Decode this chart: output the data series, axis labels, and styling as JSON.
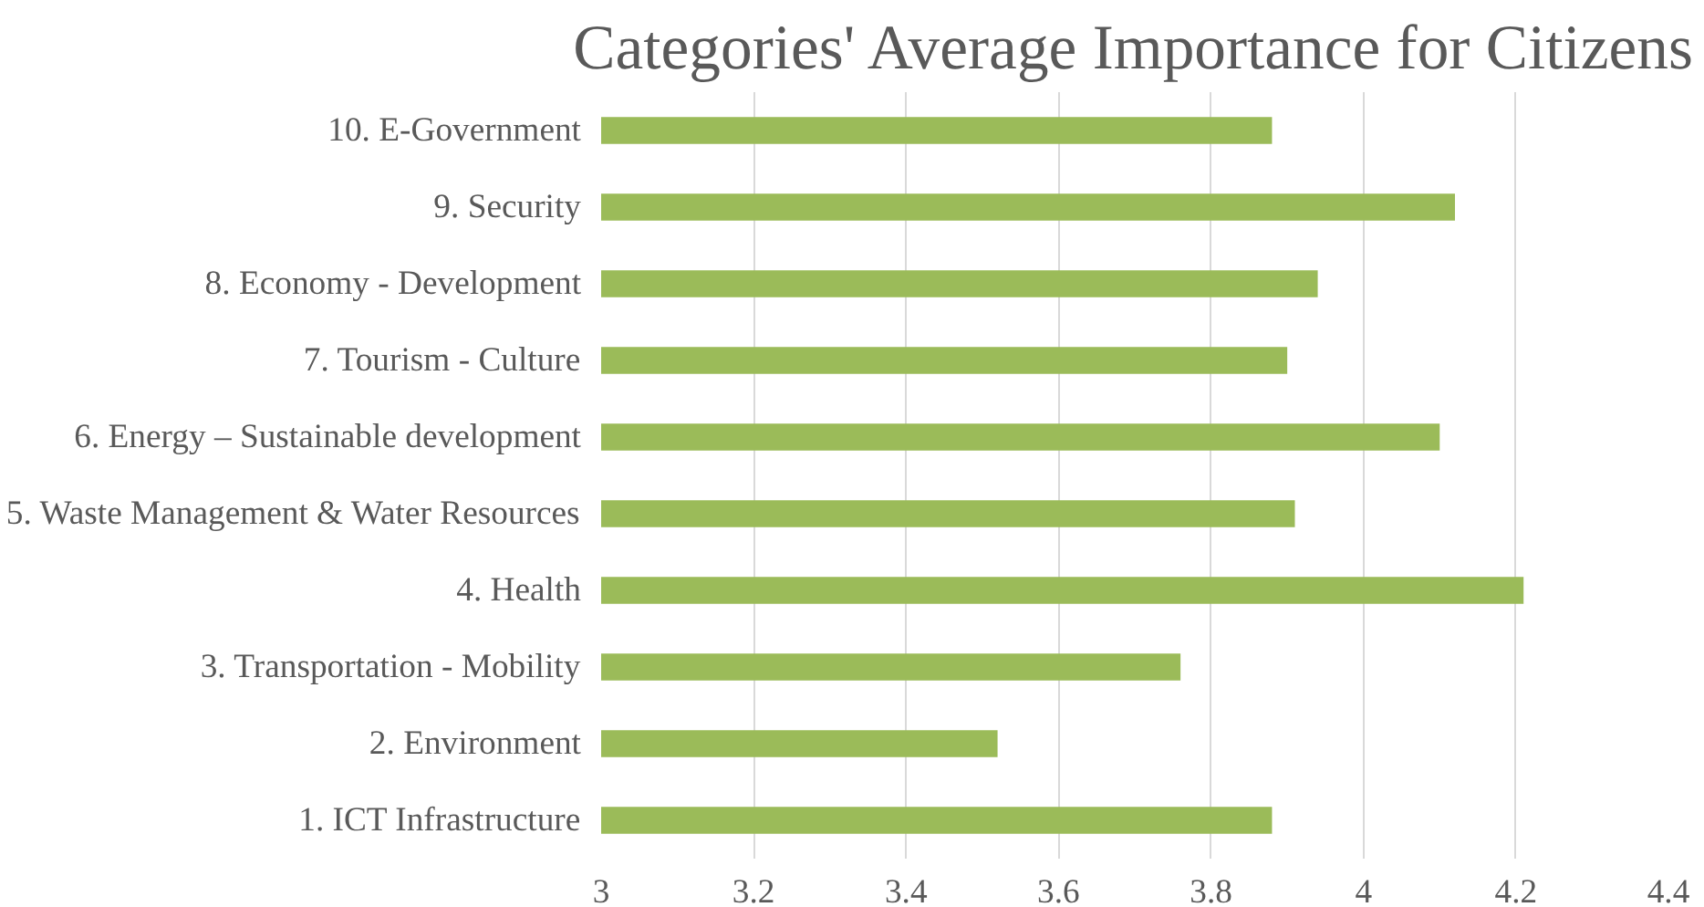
{
  "chart_data": {
    "type": "bar",
    "orientation": "horizontal",
    "title": "Categories' Average Importance for Citizens",
    "categories": [
      "10. E-Government",
      "9. Security",
      "8. Economy - Development",
      "7. Tourism - Culture",
      "6. Energy – Sustainable development",
      "5. Waste Management & Water Resources",
      "4. Health",
      "3. Transportation - Mobility",
      "2. Environment",
      "1. ICT Infrastructure"
    ],
    "values": [
      3.88,
      4.12,
      3.94,
      3.9,
      4.1,
      3.91,
      4.21,
      3.76,
      3.52,
      3.88
    ],
    "color": "#9bbb59",
    "xlim": [
      3,
      4.4
    ],
    "xticks": [
      3,
      3.2,
      3.4,
      3.6,
      3.8,
      4,
      4.2,
      4.4
    ],
    "grid": "x"
  }
}
